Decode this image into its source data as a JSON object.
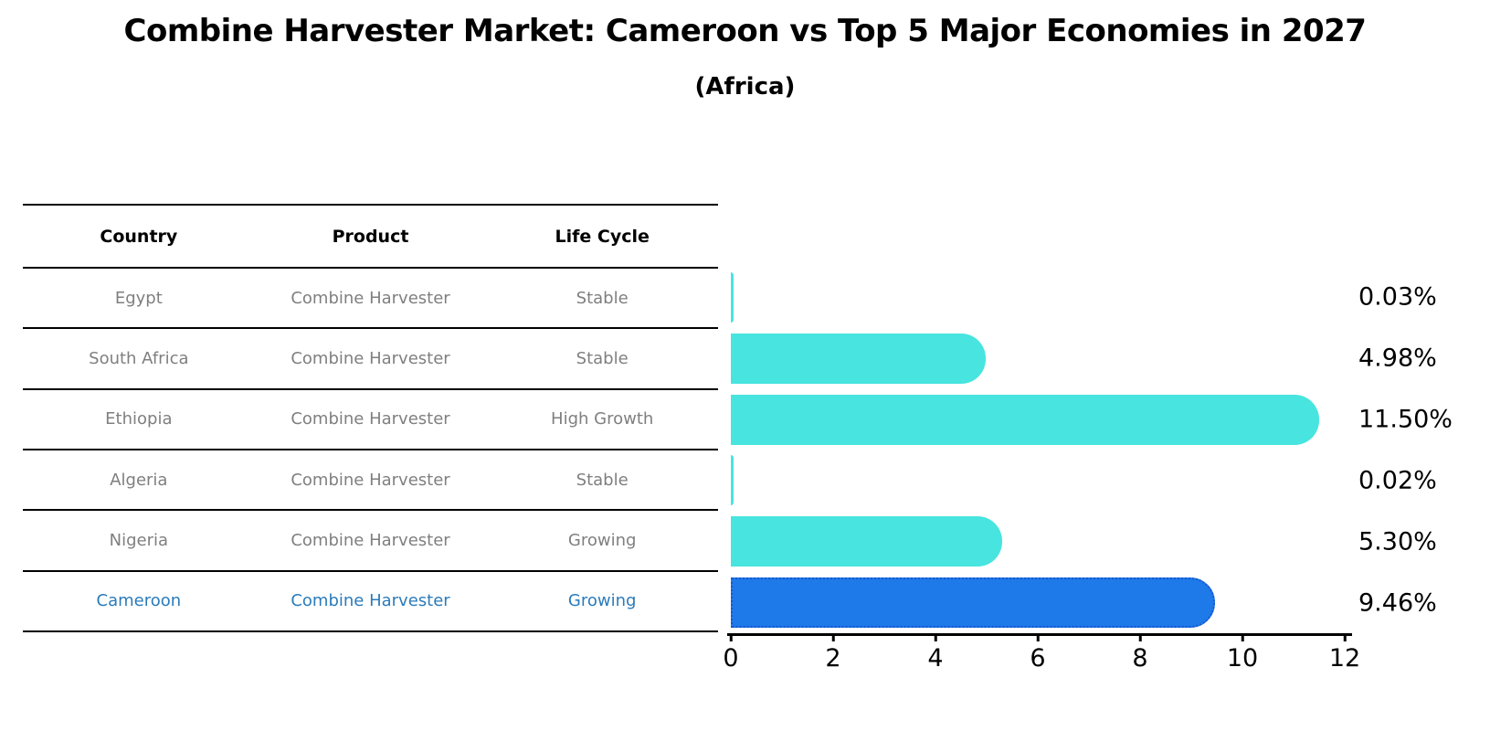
{
  "title": "Combine Harvester Market: Cameroon vs Top 5 Major Economies in 2027",
  "subtitle": "(Africa)",
  "table": {
    "headers": [
      "Country",
      "Product",
      "Life Cycle"
    ],
    "rows": [
      {
        "country": "Egypt",
        "product": "Combine Harvester",
        "life_cycle": "Stable",
        "highlight": false
      },
      {
        "country": "South Africa",
        "product": "Combine Harvester",
        "life_cycle": "Stable",
        "highlight": false
      },
      {
        "country": "Ethiopia",
        "product": "Combine Harvester",
        "life_cycle": "High Growth",
        "highlight": false
      },
      {
        "country": "Algeria",
        "product": "Combine Harvester",
        "life_cycle": "Stable",
        "highlight": false
      },
      {
        "country": "Nigeria",
        "product": "Combine Harvester",
        "life_cycle": "Growing",
        "highlight": false
      },
      {
        "country": "Cameroon",
        "product": "Combine Harvester",
        "life_cycle": "Growing",
        "highlight": true
      }
    ]
  },
  "chart_data": {
    "type": "bar",
    "orientation": "horizontal",
    "title": "Combine Harvester Market: Cameroon vs Top 5 Major Economies in 2027 (Africa)",
    "categories": [
      "Egypt",
      "South Africa",
      "Ethiopia",
      "Algeria",
      "Nigeria",
      "Cameroon"
    ],
    "values": [
      0.03,
      4.98,
      11.5,
      0.02,
      5.3,
      9.46
    ],
    "value_labels": [
      "0.03%",
      "4.98%",
      "11.50%",
      "0.02%",
      "5.30%",
      "9.46%"
    ],
    "xlim": [
      0,
      12
    ],
    "x_ticks": [
      "0",
      "2",
      "4",
      "6",
      "8",
      "10",
      "12"
    ],
    "grid": false,
    "legend": "none",
    "highlight_index": 5
  },
  "colors": {
    "bar": "#48e4df",
    "highlight_bar": "#1e7ae8",
    "highlight_border": "#1657cf",
    "highlight_text": "#2b7bba",
    "row_text": "#7f7f7f",
    "axis": "#000000"
  }
}
